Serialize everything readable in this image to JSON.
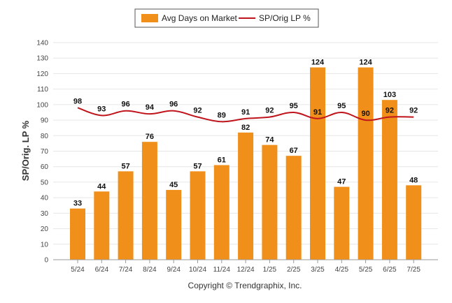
{
  "chart_data": {
    "type": "bar",
    "ylabel": "SP/Orig. LP %",
    "ylim": [
      0,
      140
    ],
    "yticks": [
      0,
      10,
      20,
      30,
      40,
      50,
      60,
      70,
      80,
      90,
      100,
      110,
      120,
      130,
      140
    ],
    "categories": [
      "5/24",
      "6/24",
      "7/24",
      "8/24",
      "9/24",
      "10/24",
      "11/24",
      "12/24",
      "1/25",
      "2/25",
      "3/25",
      "4/25",
      "5/25",
      "6/25",
      "7/25"
    ],
    "series": [
      {
        "name": "Avg Days on Market",
        "type": "bar",
        "color": "#f0901b",
        "values": [
          33,
          44,
          57,
          76,
          45,
          57,
          61,
          82,
          74,
          67,
          124,
          47,
          124,
          103,
          48
        ]
      },
      {
        "name": "SP/Orig LP %",
        "type": "line",
        "color": "#c0141c",
        "values": [
          98,
          93,
          96,
          94,
          96,
          92,
          89,
          91,
          92,
          95,
          91,
          95,
          90,
          92,
          92
        ]
      }
    ],
    "legend_placement": "top-center",
    "grid": true
  },
  "footer": {
    "text": "Copyright © Trendgraphix, Inc."
  }
}
